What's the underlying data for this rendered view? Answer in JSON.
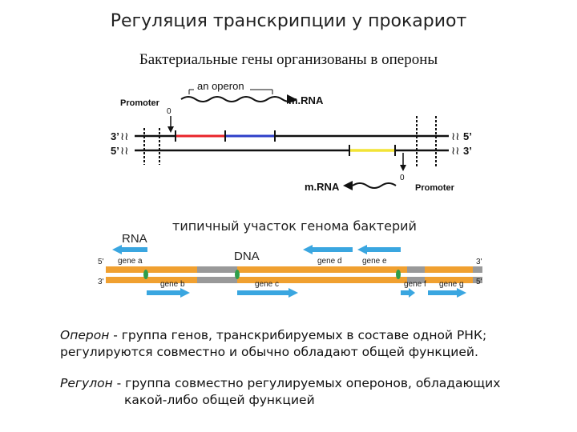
{
  "title": "Регуляция транскрипции у прокариот",
  "subtitle": "Бактериальные гены организованы в опероны",
  "operon_diagram": {
    "operon_label": "an operon",
    "promoter_top": "Promoter",
    "promoter_bottom": "Promoter",
    "zero_top": "0",
    "zero_bottom": "0",
    "mrna_top": "m.RNA",
    "mrna_bottom": "m.RNA",
    "strand_left_top": "3’",
    "strand_left_bottom": "5’",
    "strand_right_top": "5’",
    "strand_right_bottom": "3’",
    "colors": {
      "gene_red": "#e8232a",
      "gene_blue": "#2e3fc8",
      "gene_yellow": "#f2e436"
    }
  },
  "genome_caption": "типичный участок генома бактерий",
  "genome_diagram": {
    "rna_label": "RNA",
    "dna_label": "DNA",
    "end_left_top": "5'",
    "end_left_bottom": "3'",
    "end_right_top": "3'",
    "end_right_bottom": "5'",
    "genes_top": [
      "gene a",
      "gene d",
      "gene e"
    ],
    "genes_bottom": [
      "gene b",
      "gene c",
      "gene f",
      "gene g"
    ],
    "colors": {
      "dna": "#f0a030",
      "spacer": "#999999",
      "arrow": "#3aa6e0"
    }
  },
  "definitions": {
    "operon_term": "Оперон",
    "operon_text": " - группа генов, транскрибируемых в составе одной РНК; регулируются совместно и обычно обладают общей функцией.",
    "regulon_term": "Регулон",
    "regulon_text_1": " - группа совместно регулируемых оперонов, обладающих",
    "regulon_text_2": "какой-либо общей функцией"
  }
}
